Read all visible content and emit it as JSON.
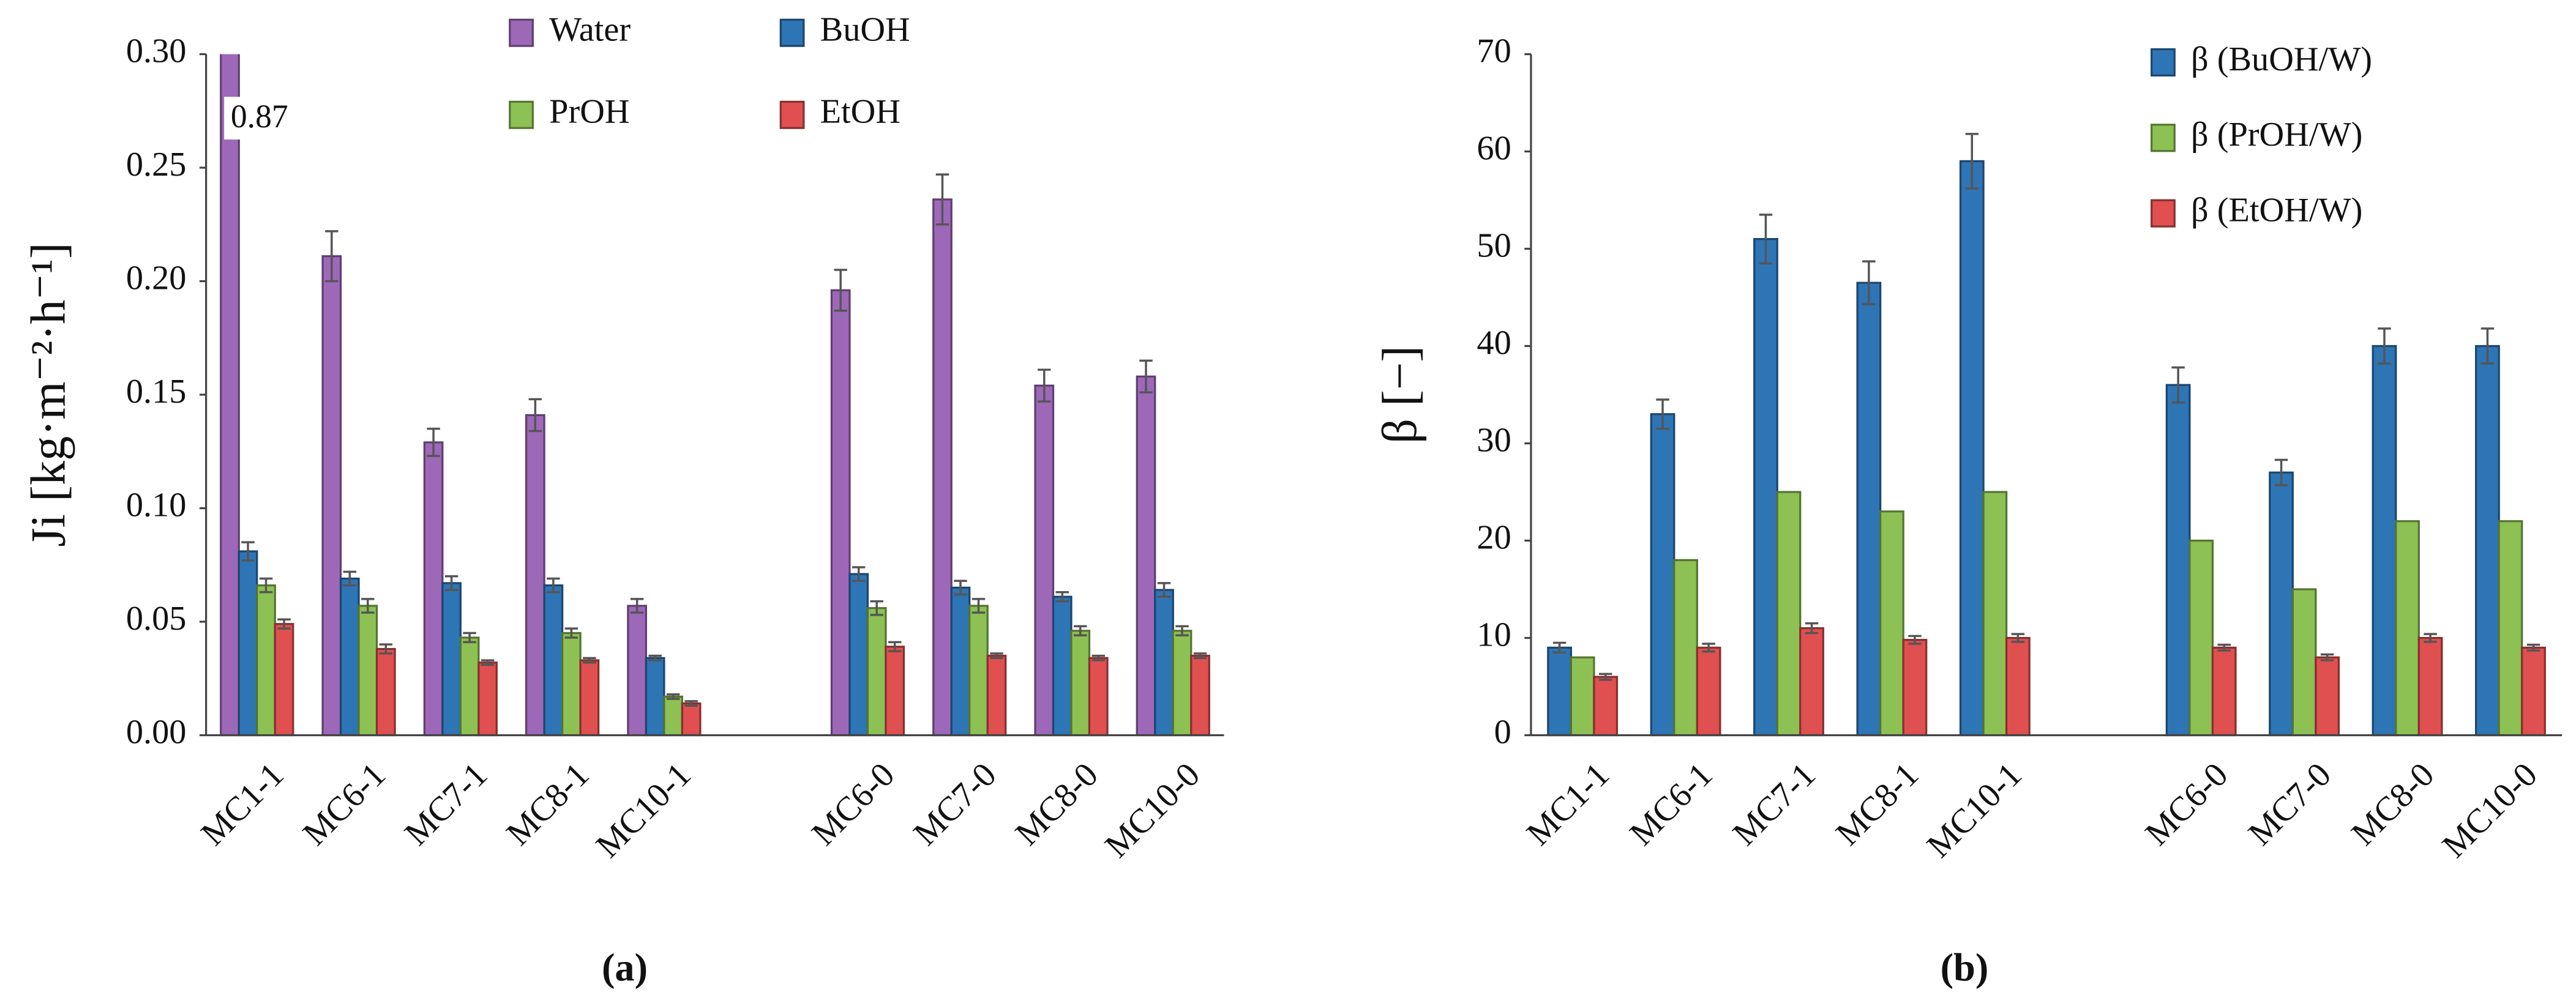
{
  "chart_data": [
    {
      "type": "bar",
      "caption": "(a)",
      "y_label": "Ji [kg·m⁻²·h⁻¹]",
      "categories": [
        "MC1-1",
        "MC6-1",
        "MC7-1",
        "MC8-1",
        "MC10-1",
        null,
        "MC6-0",
        "MC7-0",
        "MC8-0",
        "MC10-0"
      ],
      "ylim": [
        0,
        0.3
      ],
      "yticks": [
        {
          "value": 0,
          "label": "0.00"
        },
        0.05,
        {
          "value": 0.1,
          "label": "0.10"
        },
        0.15,
        {
          "value": 0.2,
          "label": "0.20"
        },
        0.25,
        {
          "value": 0.3,
          "label": "0.30"
        }
      ],
      "series": [
        {
          "name": "Water",
          "color": "#9e68b9",
          "values": [
            0.87,
            0.211,
            0.129,
            0.141,
            0.057,
            null,
            0.196,
            0.236,
            0.154,
            0.158
          ],
          "errors": [
            null,
            0.011,
            0.006,
            0.007,
            0.003,
            null,
            0.009,
            0.011,
            0.007,
            0.007
          ],
          "value_labels": [
            "0.87",
            null,
            null,
            null,
            null,
            null,
            null,
            null,
            null,
            null
          ]
        },
        {
          "name": "BuOH",
          "color": "#2e75b6",
          "values": [
            0.081,
            0.069,
            0.067,
            0.066,
            0.034,
            null,
            0.071,
            0.065,
            0.061,
            0.064
          ],
          "errors": [
            0.004,
            0.003,
            0.003,
            0.003,
            0.001,
            null,
            0.003,
            0.003,
            0.002,
            0.003
          ]
        },
        {
          "name": "PrOH",
          "color": "#8dc153",
          "values": [
            0.066,
            0.057,
            0.043,
            0.045,
            0.017,
            null,
            0.056,
            0.057,
            0.046,
            0.046
          ],
          "errors": [
            0.003,
            0.003,
            0.002,
            0.002,
            0.001,
            null,
            0.003,
            0.003,
            0.002,
            0.002
          ]
        },
        {
          "name": "EtOH",
          "color": "#e05050",
          "values": [
            0.049,
            0.038,
            0.032,
            0.033,
            0.014,
            null,
            0.039,
            0.035,
            0.034,
            0.035
          ],
          "errors": [
            0.002,
            0.002,
            0.001,
            0.001,
            0.001,
            null,
            0.002,
            0.001,
            0.001,
            0.001
          ]
        }
      ]
    },
    {
      "type": "bar",
      "caption": "(b)",
      "y_label": "β [−]",
      "categories": [
        "MC1-1",
        "MC6-1",
        "MC7-1",
        "MC8-1",
        "MC10-1",
        null,
        "MC6-0",
        "MC7-0",
        "MC8-0",
        "MC10-0"
      ],
      "ylim": [
        0,
        70
      ],
      "yticks": [
        0,
        10,
        20,
        30,
        40,
        50,
        60,
        70
      ],
      "series": [
        {
          "name": "β (BuOH/W)",
          "color": "#2e75b6",
          "values": [
            9,
            33,
            51,
            46.5,
            59,
            null,
            36,
            27,
            40,
            40
          ],
          "errors": [
            0.5,
            1.5,
            2.5,
            2.2,
            2.8,
            null,
            1.8,
            1.3,
            1.8,
            1.8
          ]
        },
        {
          "name": "β (PrOH/W)",
          "color": "#8dc153",
          "values": [
            8,
            18,
            25,
            23,
            25,
            null,
            20,
            15,
            22,
            22
          ]
        },
        {
          "name": "β (EtOH/W)",
          "color": "#e05050",
          "values": [
            6,
            9,
            11,
            9.8,
            10,
            null,
            9,
            8,
            10,
            9
          ],
          "errors": [
            0.3,
            0.4,
            0.5,
            0.4,
            0.4,
            null,
            0.3,
            0.3,
            0.4,
            0.3
          ]
        }
      ]
    }
  ]
}
